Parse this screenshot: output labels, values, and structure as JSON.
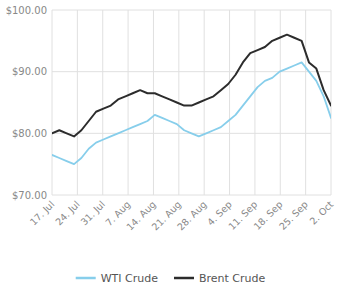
{
  "chart_data": {
    "type": "line",
    "x": [
      0,
      0.289474,
      0.578947,
      0.868421,
      1.157895,
      1.447368,
      1.736842,
      2.026316,
      2.315789,
      2.605263,
      2.894737,
      3.184211,
      3.473684,
      3.763158,
      4.052632,
      4.342105,
      4.631579,
      4.921053,
      5.210526,
      5.5,
      5.789474,
      6.078947,
      6.368421,
      6.657895,
      6.947368,
      7.236842,
      7.526316,
      7.815789,
      8.105263,
      8.394737,
      8.684211,
      8.973684,
      9.263158,
      9.552632,
      9.842105,
      10.131579,
      10.421053,
      10.710526,
      11
    ],
    "xlim": [
      0,
      11
    ],
    "xticks": [
      {
        "value": 0,
        "label": "17. Jul"
      },
      {
        "value": 1,
        "label": "24. Jul"
      },
      {
        "value": 2,
        "label": "31. Jul"
      },
      {
        "value": 3,
        "label": "7. Aug"
      },
      {
        "value": 4,
        "label": "14. Aug"
      },
      {
        "value": 5,
        "label": "21. Aug"
      },
      {
        "value": 6,
        "label": "28. Aug"
      },
      {
        "value": 7,
        "label": "4. Sep"
      },
      {
        "value": 8,
        "label": "11. Sep"
      },
      {
        "value": 9,
        "label": "18. Sep"
      },
      {
        "value": 10,
        "label": "25. Sep"
      },
      {
        "value": 11,
        "label": "2. Oct"
      }
    ],
    "ylim": [
      70.0,
      100.0
    ],
    "yticks": [
      {
        "value": 70.0,
        "label": "$70.00"
      },
      {
        "value": 80.0,
        "label": "$80.00"
      },
      {
        "value": 90.0,
        "label": "$90.00"
      },
      {
        "value": 100.0,
        "label": "$100.00"
      }
    ],
    "grid": true,
    "legend": "bottom",
    "series": [
      {
        "name": "WTI Crude",
        "color": "#87CEEB",
        "values": [
          76.5,
          76.0,
          75.5,
          75.0,
          76.0,
          77.5,
          78.5,
          79.0,
          79.5,
          80.0,
          80.5,
          81.0,
          81.5,
          82.0,
          83.0,
          82.5,
          82.0,
          81.5,
          80.5,
          80.0,
          79.5,
          80.0,
          80.5,
          81.0,
          82.0,
          83.0,
          84.5,
          86.0,
          87.5,
          88.5,
          89.0,
          90.0,
          90.5,
          91.0,
          91.5,
          90.0,
          88.5,
          86.0,
          82.5
        ]
      },
      {
        "name": "Brent Crude",
        "color": "#2c2c2c",
        "values": [
          80.0,
          80.5,
          80.0,
          79.5,
          80.5,
          82.0,
          83.5,
          84.0,
          84.5,
          85.5,
          86.0,
          86.5,
          87.0,
          86.5,
          86.5,
          86.0,
          85.5,
          85.0,
          84.5,
          84.5,
          85.0,
          85.5,
          86.0,
          87.0,
          88.0,
          89.5,
          91.5,
          93.0,
          93.5,
          94.0,
          95.0,
          95.5,
          96.0,
          95.5,
          95.0,
          91.5,
          90.5,
          87.0,
          84.5
        ]
      }
    ]
  }
}
